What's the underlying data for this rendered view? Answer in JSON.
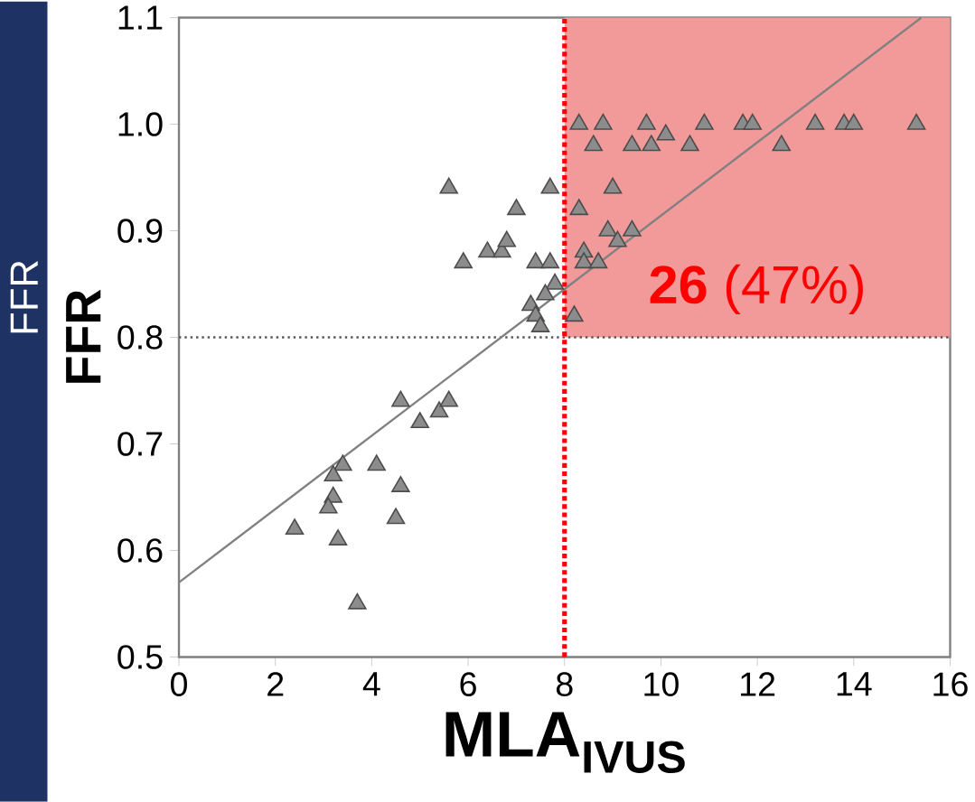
{
  "chart_data": {
    "type": "scatter",
    "xlabel": "MLA$_{IVUS}$",
    "ylabel": "FFR",
    "annotations": [
      "FFR"
    ],
    "xlim": [
      0,
      16
    ],
    "ylim": [
      0.5,
      1.1
    ],
    "xticks": [
      0,
      2,
      4,
      6,
      8,
      10,
      12,
      14,
      16
    ],
    "yticks": [
      0.5,
      0.6,
      0.7,
      0.8,
      0.9,
      {
        "value": 1.0,
        "label": "1.0"
      },
      1.1
    ],
    "series": [
      {
        "marker": "triangle",
        "color": "#8c8c8c",
        "x": [
          5.6,
          7.7,
          7.0,
          5.9,
          6.4,
          6.7,
          6.8,
          7.4,
          7.7,
          7.8,
          7.6,
          7.3,
          7.4,
          7.5,
          8.2,
          8.3,
          8.8,
          9.7,
          10.9,
          11.7,
          11.9,
          13.2,
          13.8,
          14.0,
          15.3,
          8.6,
          9.4,
          9.8,
          10.1,
          10.6,
          12.5,
          9.0,
          8.3,
          8.9,
          9.4,
          9.1,
          8.4,
          8.4,
          8.7,
          4.6,
          5.0,
          5.4,
          5.6,
          3.4,
          3.2,
          4.1,
          3.2,
          3.1,
          4.6,
          4.5,
          2.4,
          3.3,
          3.7
        ],
        "values": [
          0.94,
          0.94,
          0.92,
          0.87,
          0.88,
          0.88,
          0.89,
          0.87,
          0.87,
          0.85,
          0.84,
          0.83,
          0.82,
          0.81,
          0.82,
          1.0,
          1.0,
          1.0,
          1.0,
          1.0,
          1.0,
          1.0,
          1.0,
          1.0,
          1.0,
          0.98,
          0.98,
          0.98,
          0.99,
          0.98,
          0.98,
          0.94,
          0.92,
          0.9,
          0.9,
          0.89,
          0.88,
          0.87,
          0.87,
          0.74,
          0.72,
          0.73,
          0.74,
          0.68,
          0.67,
          0.68,
          0.65,
          0.64,
          0.66,
          0.63,
          0.62,
          0.61,
          0.55
        ]
      },
      {
        "type": "line",
        "color": "#808080",
        "x": [
          0,
          15.4
        ],
        "values": [
          0.57,
          1.1
        ]
      }
    ],
    "ref_lines": [
      {
        "axis": "y",
        "value": 0.8,
        "color": "#555555",
        "line_style": "dotted"
      },
      {
        "axis": "x",
        "value": 8,
        "color": "#ff0000",
        "line_style": "dotted"
      }
    ],
    "bands": [
      {
        "axis": "x",
        "from": 8,
        "to": 16,
        "color": "#f29a9a",
        "label": "**26** (47%)"
      }
    ]
  }
}
